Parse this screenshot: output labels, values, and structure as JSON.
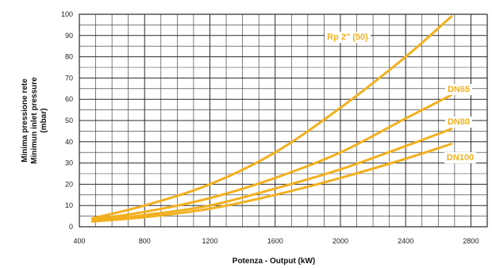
{
  "colors": {
    "curve": "#F2B01E",
    "grid": "#2a2a2a",
    "background": "#ffffff"
  },
  "chart_data": {
    "type": "line",
    "title": "",
    "xlabel": "Potenza - Output (kW)",
    "ylabel_lines": [
      "Minima pressione rete",
      "Minimun inlet pressure",
      "(mbar)"
    ],
    "xlim": [
      400,
      2900
    ],
    "ylim": [
      0,
      100
    ],
    "x_ticks": [
      400,
      800,
      1200,
      1600,
      2000,
      2400,
      2800
    ],
    "x_tick_labels": [
      "400",
      "800",
      "1200",
      "1600",
      "2000",
      "2400",
      "2800"
    ],
    "y_ticks": [
      0,
      10,
      20,
      30,
      40,
      50,
      60,
      70,
      80,
      90,
      100
    ],
    "y_tick_labels": [
      "0",
      "10",
      "20",
      "30",
      "40",
      "50",
      "60",
      "70",
      "80",
      "90",
      "100"
    ],
    "grid": true,
    "series": [
      {
        "name": "Rp 2\" (50)",
        "x": [
          480,
          800,
          1200,
          1600,
          2000,
          2400,
          2680
        ],
        "y": [
          4,
          10,
          20,
          35,
          56,
          80,
          99
        ]
      },
      {
        "name": "DN65",
        "x": [
          480,
          800,
          1200,
          1600,
          2000,
          2400,
          2680
        ],
        "y": [
          3.5,
          7,
          13.5,
          23,
          35,
          51,
          62
        ]
      },
      {
        "name": "DN80",
        "x": [
          480,
          800,
          1200,
          1600,
          2000,
          2400,
          2680
        ],
        "y": [
          3,
          5.5,
          10,
          18,
          27,
          38,
          46
        ]
      },
      {
        "name": "DN100",
        "x": [
          480,
          800,
          1200,
          1600,
          2000,
          2400,
          2680
        ],
        "y": [
          2.5,
          4.5,
          8.5,
          15,
          23,
          32,
          39
        ]
      }
    ]
  }
}
